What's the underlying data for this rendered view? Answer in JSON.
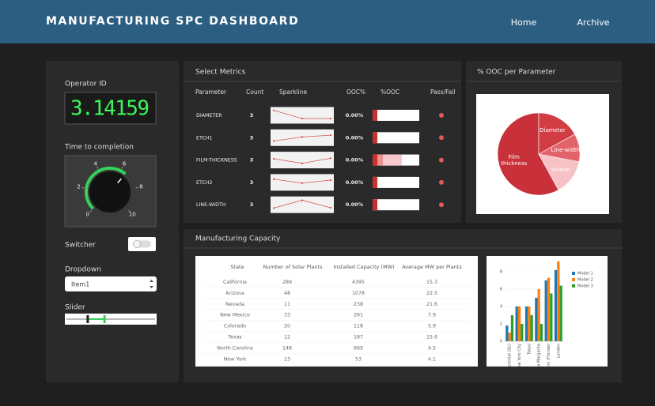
{
  "header": {
    "title": "MANUFACTURING SPC DASHBOARD",
    "nav": [
      "Home",
      "Archive"
    ]
  },
  "controls": {
    "operator_id": {
      "label": "Operator ID",
      "value": "3.14159"
    },
    "knob": {
      "label": "Time to completion",
      "min": 0,
      "max": 10,
      "ticks": [
        0,
        2,
        4,
        6,
        8,
        10
      ],
      "value": 6.5
    },
    "switch": {
      "label": "Switcher",
      "on": false
    },
    "dropdown": {
      "label": "Dropdown",
      "value": "Item1"
    },
    "slider": {
      "label": "Slider",
      "min": 0,
      "max": 10,
      "value": [
        2.4,
        4.3
      ]
    }
  },
  "metrics": {
    "title": "Select Metrics",
    "columns": [
      "Parameter",
      "Count",
      "Sparkline",
      "OOC%",
      "%OOC",
      "Pass/Fail"
    ],
    "sparkline_ylim": [
      0,
      5
    ],
    "rows": [
      {
        "parameter": "DIAMETER",
        "count": 3,
        "sparkline": [
          4.5,
          1.2,
          1.2
        ],
        "ooc": "0.00%",
        "warning": false,
        "pass": false
      },
      {
        "parameter": "ETCH1",
        "count": 3,
        "sparkline": [
          1.2,
          2.8,
          3.5
        ],
        "ooc": "0.00%",
        "warning": false,
        "pass": false
      },
      {
        "parameter": "FILM-THICKNESS",
        "count": 3,
        "sparkline": [
          3,
          1.2,
          3.2
        ],
        "ooc": "0.00%",
        "warning": true,
        "pass": false
      },
      {
        "parameter": "ETCH2",
        "count": 3,
        "sparkline": [
          3.8,
          2.2,
          3.4
        ],
        "ooc": "0.00%",
        "warning": false,
        "pass": false
      },
      {
        "parameter": "LINE-WIDTH",
        "count": 3,
        "sparkline": [
          1.2,
          4.3,
          1.3
        ],
        "ooc": "0.00%",
        "warning": false,
        "pass": false
      }
    ]
  },
  "chart_data": [
    {
      "type": "pie",
      "title": "% OOC per Parameter",
      "direction": "counterclockwise",
      "labels": [
        "Film thickness",
        "Volium",
        "Line-width",
        "Diameter"
      ],
      "values": [
        58,
        14,
        11,
        17
      ],
      "colors": [
        "#c8313a",
        "#f7c2c5",
        "#e2636a",
        "#d23d44"
      ]
    },
    {
      "type": "bar",
      "legend": "right",
      "categories": [
        "Montréal (Qc)",
        "New York City",
        "Tokyo",
        "Rancho Santa Margarita",
        "Miami (Floride)",
        "London"
      ],
      "series": [
        {
          "name": "Model 1",
          "color": "#1f77b4",
          "values": [
            1.8,
            4,
            4,
            5,
            7,
            8.2
          ]
        },
        {
          "name": "Model 2",
          "color": "#ff7f0e",
          "values": [
            1,
            4,
            4,
            6,
            7.3,
            9.2
          ]
        },
        {
          "name": "Model 3",
          "color": "#2ca02c",
          "values": [
            3,
            2,
            3,
            2,
            5.5,
            6.4
          ]
        }
      ],
      "ylim": [
        0,
        9.5
      ],
      "yticks": [
        0,
        2,
        4,
        6,
        8
      ]
    }
  ],
  "capacity": {
    "title": "Manufacturing Capacity",
    "table": {
      "columns": [
        "State",
        "Number of Solar Plants",
        "Installed Capacity (MW)",
        "Average MW per Plants"
      ],
      "rows": [
        [
          "California",
          289,
          4395,
          15.3
        ],
        [
          "Arizona",
          48,
          1078,
          22.5
        ],
        [
          "Nevada",
          11,
          238,
          21.6
        ],
        [
          "New Mexico",
          33,
          261,
          7.9
        ],
        [
          "Colorado",
          20,
          118,
          5.9
        ],
        [
          "Texas",
          12,
          187,
          15.6
        ],
        [
          "North Carolina",
          148,
          669,
          4.5
        ],
        [
          "New York",
          13,
          53,
          4.1
        ]
      ]
    }
  }
}
